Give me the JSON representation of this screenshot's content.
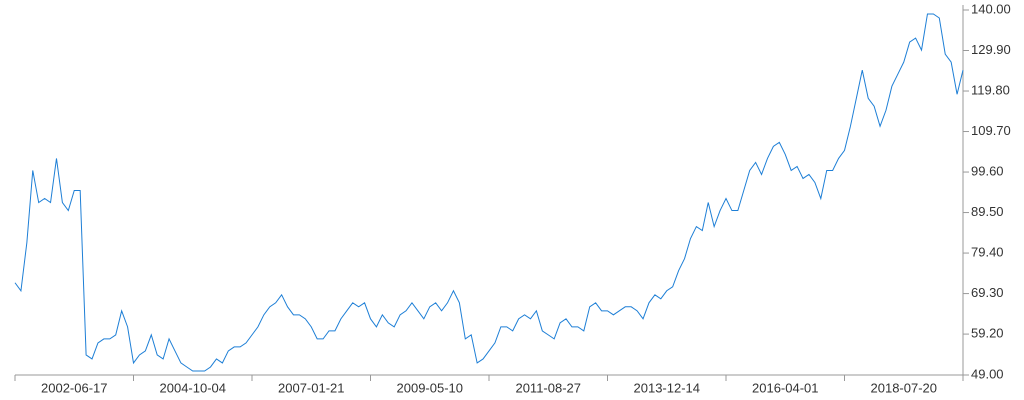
{
  "chart_data": {
    "type": "line",
    "color": "#1e7fd6",
    "categories": [
      null,
      null,
      null,
      null,
      null,
      null,
      null,
      null,
      null,
      null,
      "2002-06-17",
      null,
      null,
      null,
      null,
      null,
      null,
      null,
      null,
      null,
      null,
      null,
      null,
      null,
      null,
      null,
      null,
      null,
      null,
      null,
      "2004-10-04",
      null,
      null,
      null,
      null,
      null,
      null,
      null,
      null,
      null,
      null,
      null,
      null,
      null,
      null,
      null,
      null,
      null,
      null,
      null,
      "2007-01-21",
      null,
      null,
      null,
      null,
      null,
      null,
      null,
      null,
      null,
      null,
      null,
      null,
      null,
      null,
      null,
      null,
      null,
      null,
      null,
      "2009-05-10",
      null,
      null,
      null,
      null,
      null,
      null,
      null,
      null,
      null,
      null,
      null,
      null,
      null,
      null,
      null,
      null,
      null,
      null,
      null,
      "2011-08-27",
      null,
      null,
      null,
      null,
      null,
      null,
      null,
      null,
      null,
      null,
      null,
      null,
      null,
      null,
      null,
      null,
      null,
      null,
      null,
      "2013-12-14",
      null,
      null,
      null,
      null,
      null,
      null,
      null,
      null,
      null,
      null,
      null,
      null,
      null,
      null,
      null,
      null,
      null,
      null,
      null,
      "2016-04-01",
      null,
      null,
      null,
      null,
      null,
      null,
      null,
      null,
      null,
      null,
      null,
      null,
      null,
      null,
      null,
      null,
      null,
      null,
      null,
      "2018-07-20",
      null,
      null,
      null,
      null,
      null,
      null,
      null,
      null,
      null,
      null
    ],
    "values": [
      72,
      70,
      82,
      100,
      92,
      93,
      92,
      103,
      92,
      90,
      95,
      95,
      54,
      53,
      57,
      58,
      58,
      59,
      65,
      61,
      52,
      54,
      55,
      59,
      54,
      53,
      58,
      55,
      52,
      51,
      50,
      50,
      50,
      51,
      53,
      52,
      55,
      56,
      56,
      57,
      59,
      61,
      64,
      66,
      67,
      69,
      66,
      64,
      64,
      63,
      61,
      58,
      58,
      60,
      60,
      63,
      65,
      67,
      66,
      67,
      63,
      61,
      64,
      62,
      61,
      64,
      65,
      67,
      65,
      63,
      66,
      67,
      65,
      67,
      70,
      67,
      58,
      59,
      52,
      53,
      55,
      57,
      61,
      61,
      60,
      63,
      64,
      63,
      65,
      60,
      59,
      58,
      62,
      63,
      61,
      61,
      60,
      66,
      67,
      65,
      65,
      64,
      65,
      66,
      66,
      65,
      63,
      67,
      69,
      68,
      70,
      71,
      75,
      78,
      83,
      86,
      85,
      92,
      86,
      90,
      93,
      90,
      90,
      95,
      100,
      102,
      99,
      103,
      106,
      107,
      104,
      100,
      101,
      98,
      99,
      97,
      93,
      100,
      100,
      103,
      105,
      111,
      118,
      125,
      118,
      116,
      111,
      115,
      121,
      124,
      127,
      132,
      133,
      130,
      139,
      139,
      138,
      129,
      127,
      119,
      125
    ],
    "ylim": [
      49,
      140
    ],
    "yticks": [
      {
        "value": 49,
        "label": "49.00"
      },
      {
        "value": 59.2,
        "label": "59.20"
      },
      {
        "value": 69.3,
        "label": "69.30"
      },
      {
        "value": 79.4,
        "label": "79.40"
      },
      {
        "value": 89.5,
        "label": "89.50"
      },
      {
        "value": 99.6,
        "label": "99.60"
      },
      {
        "value": 109.7,
        "label": "109.70"
      },
      {
        "value": 119.8,
        "label": "119.80"
      },
      {
        "value": 129.9,
        "label": "129.90"
      },
      {
        "value": 140,
        "label": "140.00"
      }
    ]
  }
}
